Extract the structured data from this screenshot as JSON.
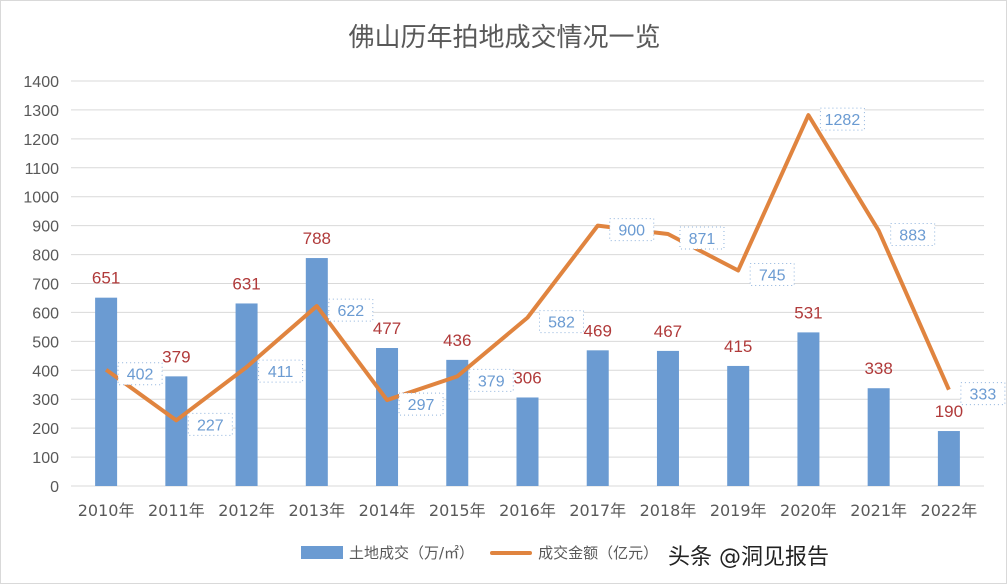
{
  "chart_data": {
    "type": "bar+line",
    "title": "佛山历年拍地成交情况一览",
    "categories": [
      "2010年",
      "2011年",
      "2012年",
      "2013年",
      "2014年",
      "2015年",
      "2016年",
      "2017年",
      "2018年",
      "2019年",
      "2020年",
      "2021年",
      "2022年"
    ],
    "series": [
      {
        "name": "土地成交（万/㎡）",
        "type": "bar",
        "color": "#6b9bd2",
        "label_color": "#b03a3a",
        "values": [
          651,
          379,
          631,
          788,
          477,
          436,
          306,
          469,
          467,
          415,
          531,
          338,
          190
        ]
      },
      {
        "name": "成交金额（亿元）",
        "type": "line",
        "color": "#e0843f",
        "label_color": "#6b9bd2",
        "values": [
          402,
          227,
          411,
          622,
          297,
          379,
          582,
          900,
          871,
          745,
          1282,
          883,
          333
        ]
      }
    ],
    "ylim": [
      0,
      1400
    ],
    "yticks": [
      0,
      100,
      200,
      300,
      400,
      500,
      600,
      700,
      800,
      900,
      1000,
      1100,
      1200,
      1300,
      1400
    ],
    "grid": true,
    "legend": "bottom"
  },
  "watermark": "头条 @洞见报告"
}
